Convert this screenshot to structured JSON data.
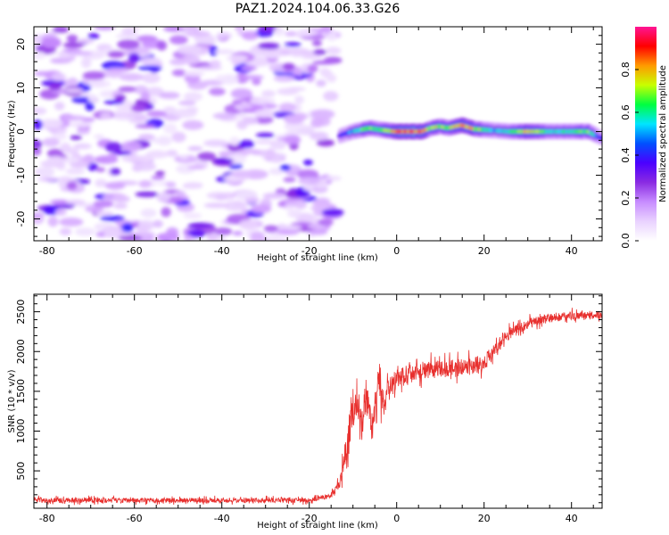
{
  "figure": {
    "title": "PAZ1.2024.104.06.33.G26"
  },
  "colors": {
    "snr_line": "#e8302e",
    "axes": "#000000",
    "colormap": [
      "#ffffff",
      "#e9d2ff",
      "#c78cff",
      "#8a2be2",
      "#4b00ff",
      "#0050ff",
      "#00e5ff",
      "#00ff40",
      "#c8ff00",
      "#ff9a00",
      "#ff0000",
      "#ff1493"
    ]
  },
  "chart_data": [
    {
      "type": "heatmap",
      "title": "PAZ1.2024.104.06.33.G26",
      "xlabel": "Height of straight line (km)",
      "ylabel": "Frequency (Hz)",
      "xlim": [
        -83,
        47
      ],
      "ylim": [
        -25,
        24
      ],
      "xticks": [
        "-80",
        "-60",
        "-40",
        "-20",
        "0",
        "20",
        "40"
      ],
      "yticks": [
        "-20",
        "-10",
        "0",
        "10",
        "20"
      ],
      "colorbar": {
        "label": "Normalized spectral amplitude",
        "range": [
          0,
          1
        ],
        "ticks": [
          "0.0",
          "0.2",
          "0.4",
          "0.6",
          "0.8"
        ]
      },
      "ridge": {
        "x": [
          -13,
          -10,
          -6,
          -4,
          0,
          6,
          8,
          10,
          12,
          15,
          18,
          22,
          26,
          30,
          35,
          40,
          44,
          47
        ],
        "y": [
          -1.0,
          0.0,
          0.8,
          0.5,
          0.0,
          0.0,
          0.8,
          1.2,
          0.8,
          1.5,
          0.6,
          0.3,
          0.0,
          0.0,
          0.0,
          0.0,
          0.0,
          -1.5
        ],
        "amplitude": [
          0.35,
          0.55,
          0.75,
          0.6,
          0.9,
          0.9,
          0.7,
          0.75,
          0.7,
          0.85,
          0.8,
          0.55,
          0.6,
          0.85,
          0.6,
          0.6,
          0.7,
          0.4
        ]
      },
      "noise_region_x": [
        -83,
        -14
      ]
    },
    {
      "type": "line",
      "xlabel": "Height of straight line (km)",
      "ylabel": "SNR (10 * v/v)",
      "xlim": [
        -83,
        47
      ],
      "ylim": [
        30,
        2720
      ],
      "xticks": [
        "-80",
        "-60",
        "-40",
        "-20",
        "0",
        "20",
        "40"
      ],
      "yticks": [
        "500",
        "1000",
        "1500",
        "2000",
        "2500"
      ],
      "series": [
        {
          "trend_x": [
            -83,
            -20,
            -15,
            -13,
            -12,
            -11,
            -10,
            -9,
            -8,
            -7,
            -6,
            -5,
            -4,
            -3,
            -2,
            0,
            5,
            10,
            15,
            20,
            25,
            30,
            35,
            40,
            47
          ],
          "trend_y": [
            130,
            130,
            190,
            350,
            650,
            900,
            1250,
            1400,
            1050,
            1450,
            1150,
            1250,
            1650,
            1300,
            1500,
            1650,
            1760,
            1780,
            1800,
            1850,
            2200,
            2350,
            2420,
            2450,
            2460
          ],
          "noise_spread": [
            60,
            60,
            60,
            120,
            320,
            420,
            420,
            420,
            420,
            420,
            420,
            420,
            420,
            380,
            300,
            250,
            220,
            220,
            220,
            220,
            150,
            130,
            110,
            100,
            100
          ]
        }
      ]
    }
  ]
}
